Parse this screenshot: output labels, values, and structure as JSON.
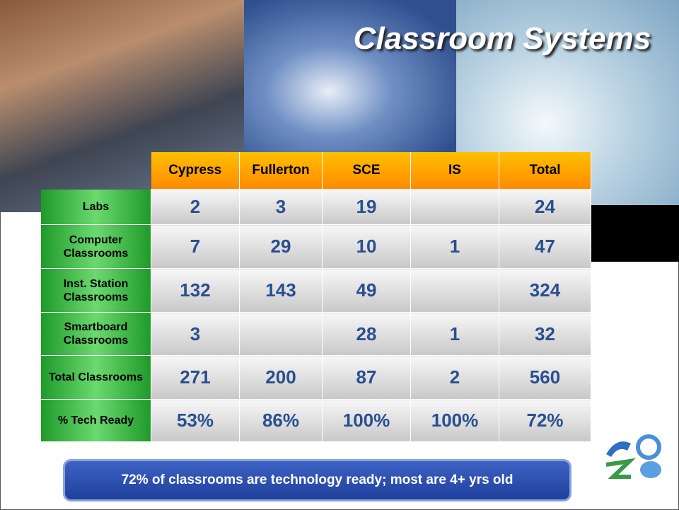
{
  "title": "Classroom Systems",
  "table": {
    "header": [
      "Cypress",
      "Fullerton",
      "SCE",
      "IS",
      "Total"
    ],
    "rows": [
      {
        "label": "Labs",
        "cells": [
          "2",
          "3",
          "19",
          null,
          "24"
        ]
      },
      {
        "label": "Computer Classrooms",
        "cells": [
          "7",
          "29",
          "10",
          "1",
          "47"
        ]
      },
      {
        "label": "Inst. Station Classrooms",
        "cells": [
          "132",
          "143",
          "49",
          null,
          "324"
        ]
      },
      {
        "label": "Smartboard Classrooms",
        "cells": [
          "3",
          null,
          "28",
          "1",
          "32"
        ]
      },
      {
        "label": "Total Classrooms",
        "cells": [
          "271",
          "200",
          "87",
          "2",
          "560"
        ]
      },
      {
        "label": "% Tech Ready",
        "cells": [
          "53%",
          "86%",
          "100%",
          "100%",
          "72%"
        ]
      }
    ]
  },
  "footer": "72% of classrooms are technology ready; most are 4+ yrs old"
}
